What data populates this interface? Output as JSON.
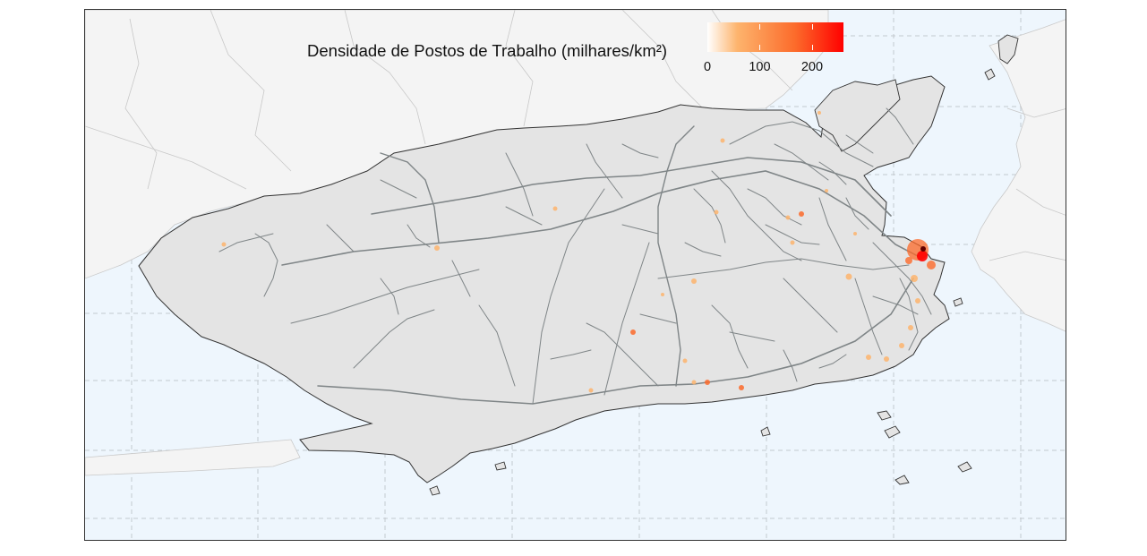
{
  "legend": {
    "title": "Densidade de Postos de Trabalho (milhares/km²)",
    "ticks": [
      "0",
      "100",
      "200"
    ],
    "tick_values": [
      0,
      100,
      200
    ],
    "max_value": 260,
    "gradient_colors": [
      "#ffffff",
      "#fdb46d",
      "#fc6a2a",
      "#ff0000"
    ]
  },
  "map": {
    "colors": {
      "water": "#eef6fd",
      "land_outside": "#f4f4f4",
      "municipality": "#e4e4e4",
      "outline": "#333333",
      "roads": "#7f8587",
      "graticule": "#c3c9cf",
      "hotspot_low": "#fdb46d",
      "hotspot_mid": "#fc6a2a",
      "hotspot_high": "#ff0000",
      "hotspot_max": "#600000"
    }
  }
}
